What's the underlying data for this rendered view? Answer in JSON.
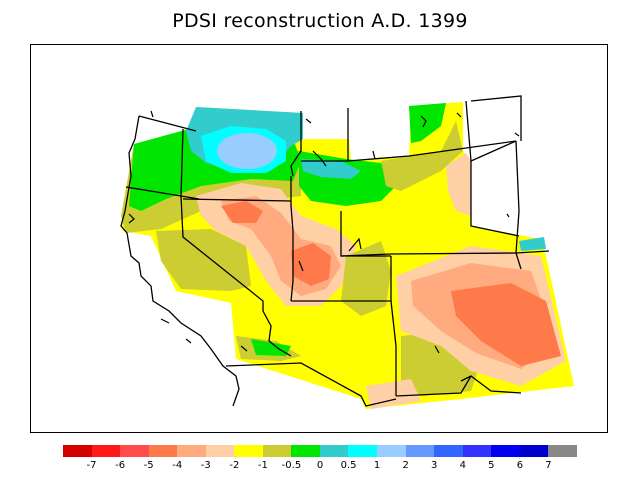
{
  "title": "PDSI reconstruction A.D. 1399",
  "colorbar": {
    "colors": [
      "#d40000",
      "#ff1a1a",
      "#ff4d4d",
      "#ff7a4a",
      "#ffaa7f",
      "#ffd0a6",
      "#ffff00",
      "#cccc33",
      "#00e600",
      "#33cccc",
      "#00ffff",
      "#99ccff",
      "#6699ff",
      "#3366ff",
      "#3333ff",
      "#0000ee",
      "#0000cc",
      "#888888"
    ],
    "tick_labels": [
      "-7",
      "-6",
      "-5",
      "-4",
      "-3",
      "-2",
      "-1",
      "-0.5",
      "0",
      "0.5",
      "1",
      "2",
      "3",
      "4",
      "5",
      "6",
      "7"
    ]
  },
  "palette": {
    "yellow": "#ffff00",
    "olive": "#cccc33",
    "green": "#00e600",
    "teal": "#33cccc",
    "cyan": "#00ffff",
    "lightblue": "#99ccff",
    "peach": "#ffd0a6",
    "salmon": "#ffaa7f",
    "orange": "#ff7a4a"
  }
}
